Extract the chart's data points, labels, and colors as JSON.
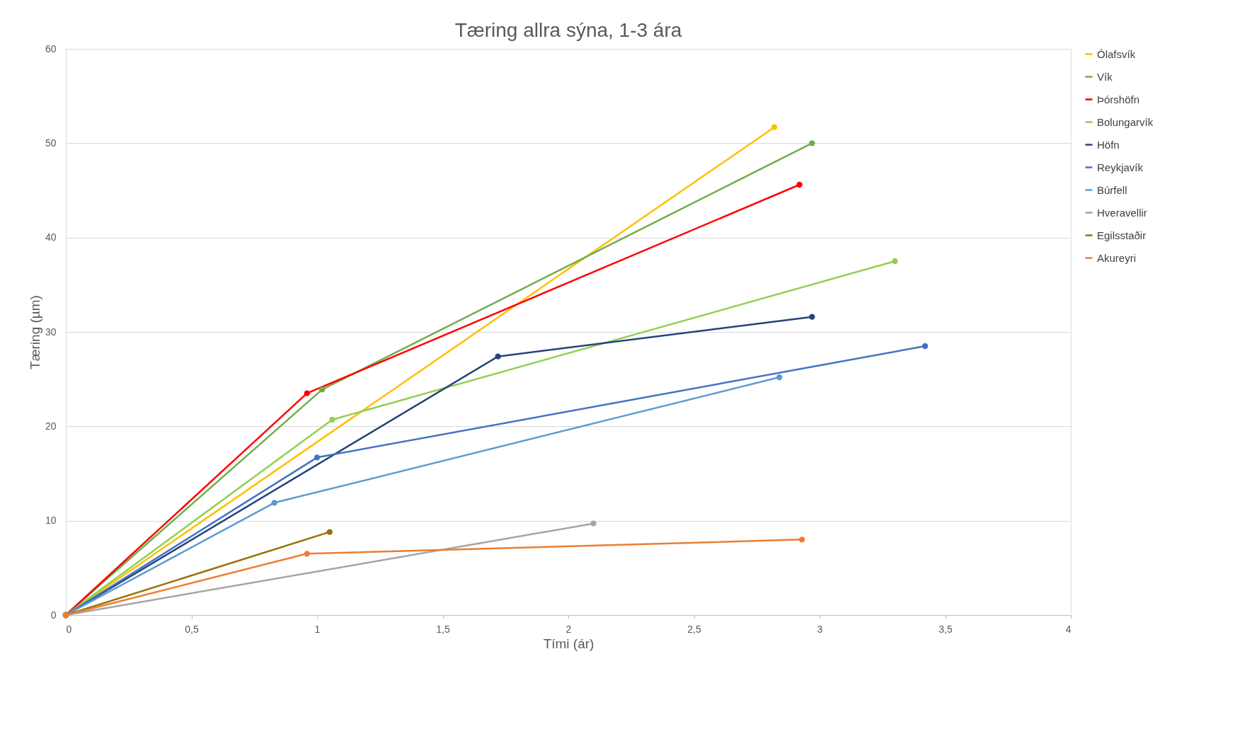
{
  "chart_data": {
    "type": "line",
    "title": "Tæring allra sýna, 1-3 ára",
    "xlabel": "Tími (ár)",
    "ylabel": "Tæring (µm)",
    "xlim": [
      0,
      4
    ],
    "xticks": [
      0,
      {
        "value": 0.5,
        "label": "0,5"
      },
      1,
      {
        "value": 1.5,
        "label": "1,5"
      },
      2,
      {
        "value": 2.5,
        "label": "2,5"
      },
      3,
      {
        "value": 3.5,
        "label": "3,5"
      },
      4
    ],
    "ylim": [
      0,
      60
    ],
    "yticks": [
      0,
      10,
      20,
      30,
      40,
      50,
      60
    ],
    "grid": "y",
    "legend": "right",
    "marker": "circle",
    "line_style": "solid",
    "series": [
      {
        "name": "Ólafsvík",
        "color": "#ffc000",
        "x": [
          0,
          2.82
        ],
        "values": [
          0,
          51.7
        ]
      },
      {
        "name": "Vík",
        "color": "#70ad47",
        "x": [
          0,
          1.02,
          2.97
        ],
        "values": [
          0,
          23.9,
          50.0
        ]
      },
      {
        "name": "Þórshöfn",
        "color": "#ff0000",
        "x": [
          0,
          0.96,
          2.92
        ],
        "values": [
          0,
          23.5,
          45.6
        ]
      },
      {
        "name": "Bolungarvík",
        "color": "#92d050",
        "x": [
          0,
          1.06,
          3.3
        ],
        "values": [
          0,
          20.7,
          37.5
        ]
      },
      {
        "name": "Höfn",
        "color": "#264478",
        "x": [
          0,
          1.72,
          2.97
        ],
        "values": [
          0,
          27.4,
          31.6
        ]
      },
      {
        "name": "Reykjavík",
        "color": "#4472c4",
        "x": [
          0,
          1.0,
          3.42
        ],
        "values": [
          0,
          16.7,
          28.5
        ]
      },
      {
        "name": "Búrfell",
        "color": "#5b9bd5",
        "x": [
          0,
          0.83,
          2.84
        ],
        "values": [
          0,
          11.9,
          25.2
        ]
      },
      {
        "name": "Hveravellir",
        "color": "#a5a5a5",
        "x": [
          0,
          2.1
        ],
        "values": [
          0,
          9.7
        ]
      },
      {
        "name": "Egilsstaðir",
        "color": "#997300",
        "x": [
          0,
          1.05
        ],
        "values": [
          0,
          8.8
        ]
      },
      {
        "name": "Akureyri",
        "color": "#ed7d31",
        "x": [
          0,
          0.96,
          2.93
        ],
        "values": [
          0,
          6.5,
          8.0
        ]
      }
    ]
  }
}
